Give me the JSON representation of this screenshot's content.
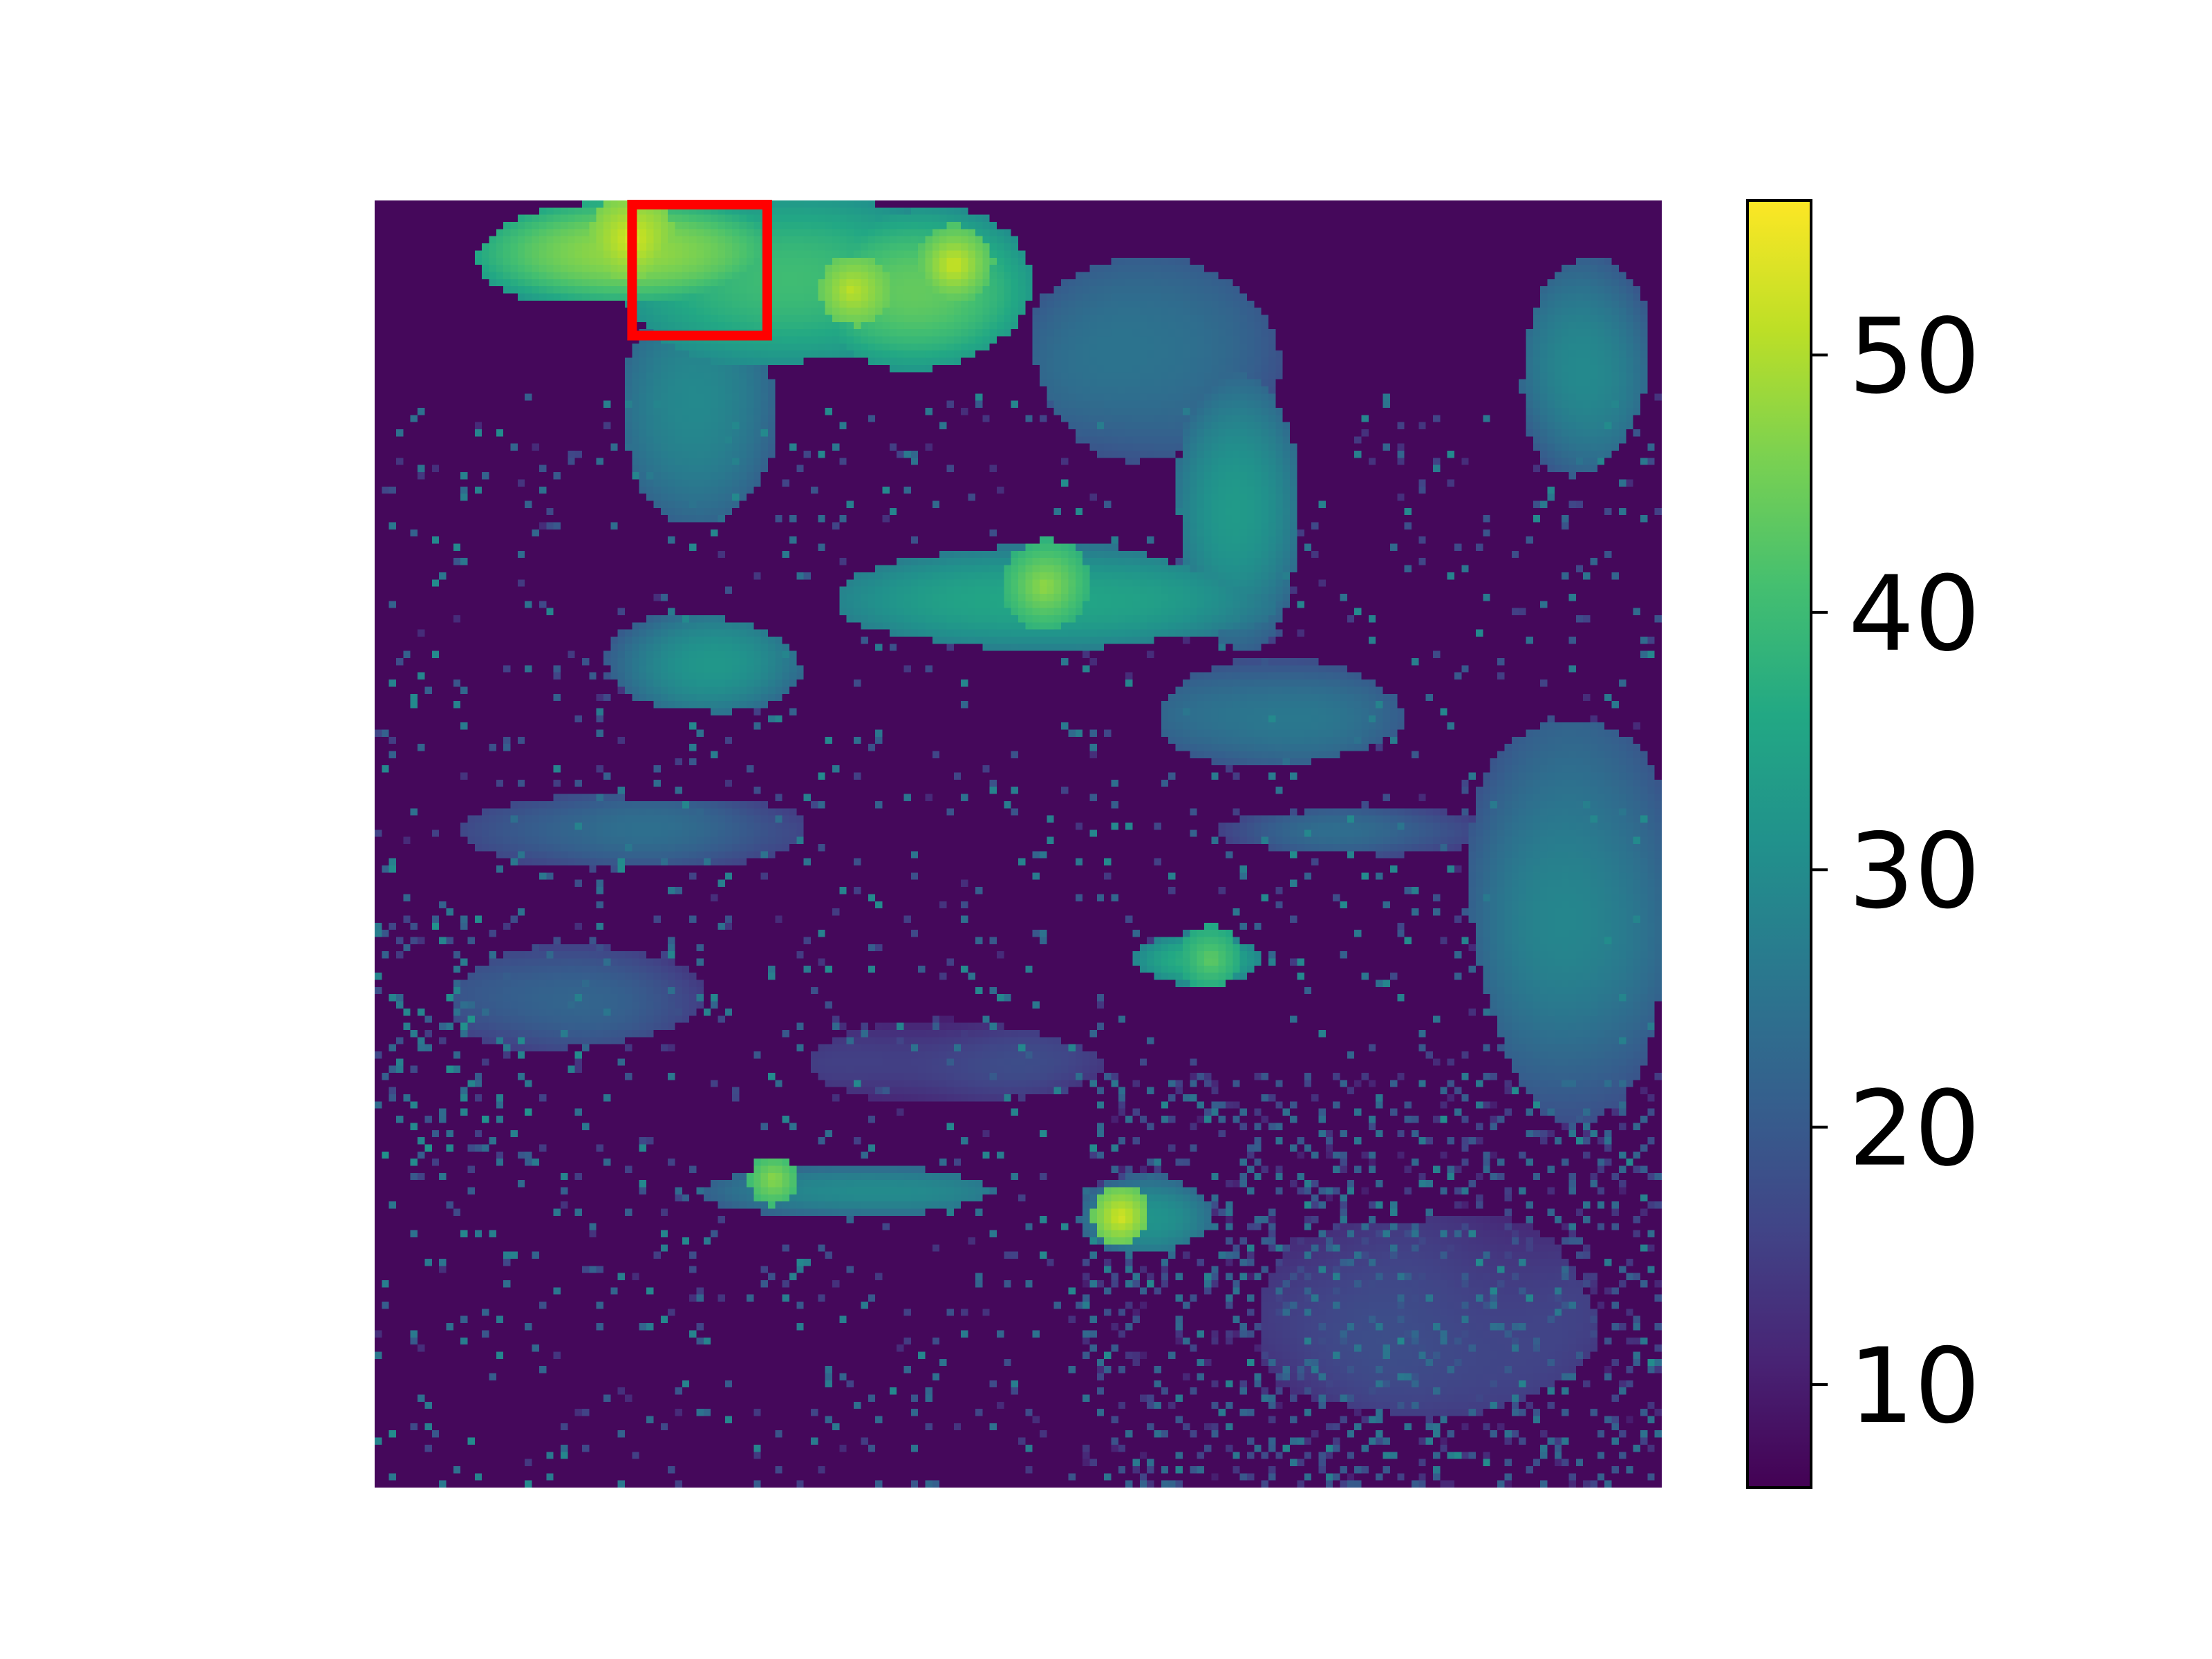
{
  "chart_data": {
    "type": "heatmap",
    "title": "",
    "xlabel": "",
    "ylabel": "",
    "axes_visible": false,
    "grid": false,
    "colormap": "viridis",
    "colorbar": {
      "position": "right",
      "min": 6,
      "max": 56,
      "ticks": [
        10,
        20,
        30,
        40,
        50
      ],
      "tick_labels": [
        "10",
        "20",
        "30",
        "40",
        "50"
      ]
    },
    "field": {
      "background_value": 7,
      "grid_cols": 180,
      "grid_rows": 180,
      "regions": [
        {
          "name": "north-band-west",
          "cx": 0.2,
          "cy": 0.04,
          "rx": 0.12,
          "ry": 0.04,
          "value": 48
        },
        {
          "name": "north-band-central",
          "cx": 0.32,
          "cy": 0.06,
          "rx": 0.14,
          "ry": 0.07,
          "value": 40
        },
        {
          "name": "north-band-east",
          "cx": 0.42,
          "cy": 0.07,
          "rx": 0.09,
          "ry": 0.06,
          "value": 44
        },
        {
          "name": "northwest-plume",
          "cx": 0.25,
          "cy": 0.16,
          "rx": 0.06,
          "ry": 0.09,
          "value": 30
        },
        {
          "name": "northeast-cells",
          "cx": 0.6,
          "cy": 0.12,
          "rx": 0.1,
          "ry": 0.08,
          "value": 26
        },
        {
          "name": "east-edge-north",
          "cx": 0.94,
          "cy": 0.13,
          "rx": 0.05,
          "ry": 0.08,
          "value": 30
        },
        {
          "name": "east-arc",
          "cx": 0.67,
          "cy": 0.24,
          "rx": 0.05,
          "ry": 0.1,
          "value": 32
        },
        {
          "name": "central-band",
          "cx": 0.52,
          "cy": 0.31,
          "rx": 0.17,
          "ry": 0.04,
          "value": 36
        },
        {
          "name": "central-west-cell",
          "cx": 0.26,
          "cy": 0.36,
          "rx": 0.07,
          "ry": 0.04,
          "value": 32
        },
        {
          "name": "mid-east-cells",
          "cx": 0.7,
          "cy": 0.4,
          "rx": 0.1,
          "ry": 0.04,
          "value": 27
        },
        {
          "name": "east-edge-large",
          "cx": 0.93,
          "cy": 0.55,
          "rx": 0.08,
          "ry": 0.15,
          "value": 28
        },
        {
          "name": "west-band",
          "cx": 0.2,
          "cy": 0.49,
          "rx": 0.13,
          "ry": 0.03,
          "value": 23
        },
        {
          "name": "mid-band-east",
          "cx": 0.76,
          "cy": 0.49,
          "rx": 0.1,
          "ry": 0.02,
          "value": 22
        },
        {
          "name": "center-cell",
          "cx": 0.64,
          "cy": 0.59,
          "rx": 0.05,
          "ry": 0.02,
          "value": 38
        },
        {
          "name": "southwest-cells",
          "cx": 0.15,
          "cy": 0.62,
          "rx": 0.1,
          "ry": 0.04,
          "value": 22
        },
        {
          "name": "south-central-band",
          "cx": 0.45,
          "cy": 0.67,
          "rx": 0.12,
          "ry": 0.03,
          "value": 18
        },
        {
          "name": "south-streak-west",
          "cx": 0.38,
          "cy": 0.77,
          "rx": 0.12,
          "ry": 0.02,
          "value": 30
        },
        {
          "name": "south-streak-east",
          "cx": 0.6,
          "cy": 0.79,
          "rx": 0.05,
          "ry": 0.03,
          "value": 32
        },
        {
          "name": "southeast-field",
          "cx": 0.82,
          "cy": 0.87,
          "rx": 0.14,
          "ry": 0.08,
          "value": 18
        }
      ],
      "hotspots": [
        {
          "cx": 0.2,
          "cy": 0.03,
          "r": 0.035,
          "value": 54
        },
        {
          "cx": 0.37,
          "cy": 0.07,
          "r": 0.03,
          "value": 52
        },
        {
          "cx": 0.45,
          "cy": 0.05,
          "r": 0.025,
          "value": 50
        },
        {
          "cx": 0.52,
          "cy": 0.3,
          "r": 0.03,
          "value": 46
        },
        {
          "cx": 0.31,
          "cy": 0.76,
          "r": 0.02,
          "value": 48
        },
        {
          "cx": 0.58,
          "cy": 0.79,
          "r": 0.02,
          "value": 52
        },
        {
          "cx": 0.65,
          "cy": 0.59,
          "r": 0.025,
          "value": 44
        }
      ],
      "speckle": [
        {
          "x0": 0.0,
          "x1": 1.0,
          "y0": 0.15,
          "y1": 1.0,
          "density": 0.05,
          "min": 12,
          "max": 30
        },
        {
          "x0": 0.55,
          "x1": 1.0,
          "y0": 0.68,
          "y1": 1.0,
          "density": 0.18,
          "min": 10,
          "max": 26
        },
        {
          "x0": 0.0,
          "x1": 0.12,
          "y0": 0.55,
          "y1": 0.75,
          "density": 0.12,
          "min": 14,
          "max": 32
        }
      ]
    },
    "annotations": [
      {
        "type": "highlight-box",
        "color": "#ff0000",
        "x0": 0.2,
        "y0": 0.0,
        "x1": 0.305,
        "y1": 0.105
      }
    ]
  }
}
